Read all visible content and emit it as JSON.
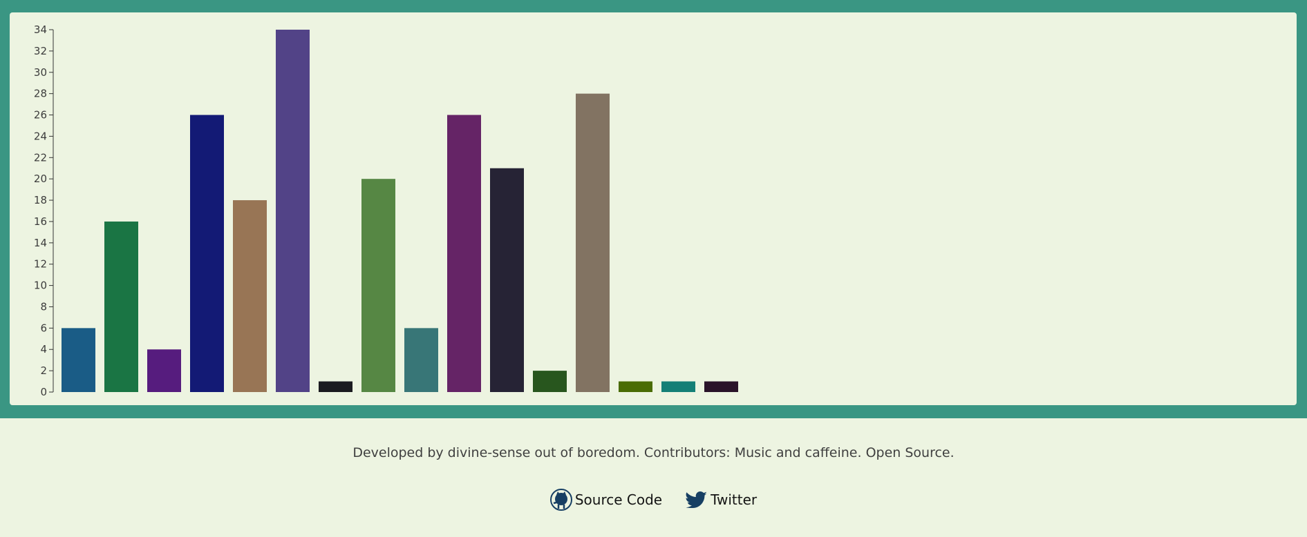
{
  "chart_data": {
    "type": "bar",
    "values": [
      6,
      16,
      4,
      26,
      18,
      34,
      1,
      20,
      6,
      26,
      21,
      2,
      28,
      1,
      1,
      1
    ],
    "colors": [
      "#1a5c86",
      "#1a7544",
      "#561c7e",
      "#131a75",
      "#987555",
      "#524387",
      "#1b1b20",
      "#568744",
      "#387677",
      "#652466",
      "#262335",
      "#28561e",
      "#827362",
      "#4a6c05",
      "#147f76",
      "#2a1329"
    ],
    "yticks": [
      0,
      2,
      4,
      6,
      8,
      10,
      12,
      14,
      16,
      18,
      20,
      22,
      24,
      26,
      28,
      30,
      32,
      34
    ],
    "ylim": [
      0,
      34
    ],
    "grid": false,
    "title": "",
    "xlabel": "",
    "ylabel": ""
  },
  "footer": {
    "credit": "Developed by divine-sense out of boredom. Contributors: Music and caffeine. Open Source.",
    "source_label": "Source Code",
    "twitter_label": "Twitter"
  },
  "theme": {
    "band_color": "#3a9683",
    "background": "#edf4e1",
    "icon_color": "#173f63"
  },
  "icons": [
    "github-icon",
    "twitter-icon"
  ]
}
